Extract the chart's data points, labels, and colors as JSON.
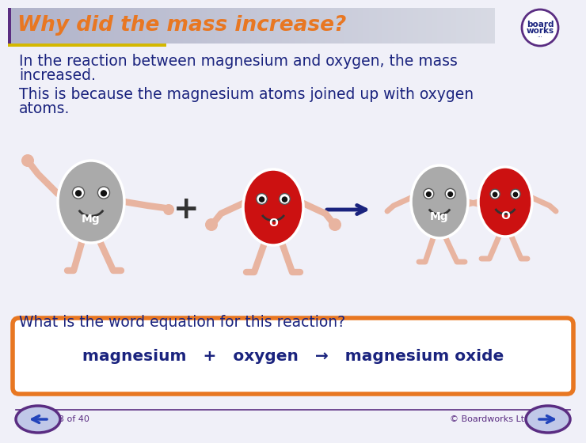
{
  "title": "Why did the mass increase?",
  "title_color": "#E87722",
  "body_bg": "#f0f0f8",
  "text1_line1": "In the reaction between magnesium and oxygen, the mass",
  "text1_line2": "increased.",
  "text2_line1": "This is because the magnesium atoms joined up with oxygen",
  "text2_line2": "atoms.",
  "text_color": "#1a237e",
  "question_text": "What is the word equation for this reaction?",
  "equation_border_color": "#E87722",
  "equation_color": "#1a237e",
  "footer_left": "33 of 40",
  "footer_right": "© Boardworks Ltd 2008",
  "footer_color": "#5a2d82",
  "mg_color": "#aaaaaa",
  "o_color": "#cc1111",
  "limb_color": "#e8b4a0",
  "border_color": "#5a2d82",
  "title_bar_left": "#b0b4c8",
  "title_bar_right": "#e8e8f0",
  "gold_color": "#d4b800",
  "arrow_color": "#1a237e",
  "white": "#ffffff",
  "eq_arrow": "→",
  "nav_fill": "#c0c8e8"
}
